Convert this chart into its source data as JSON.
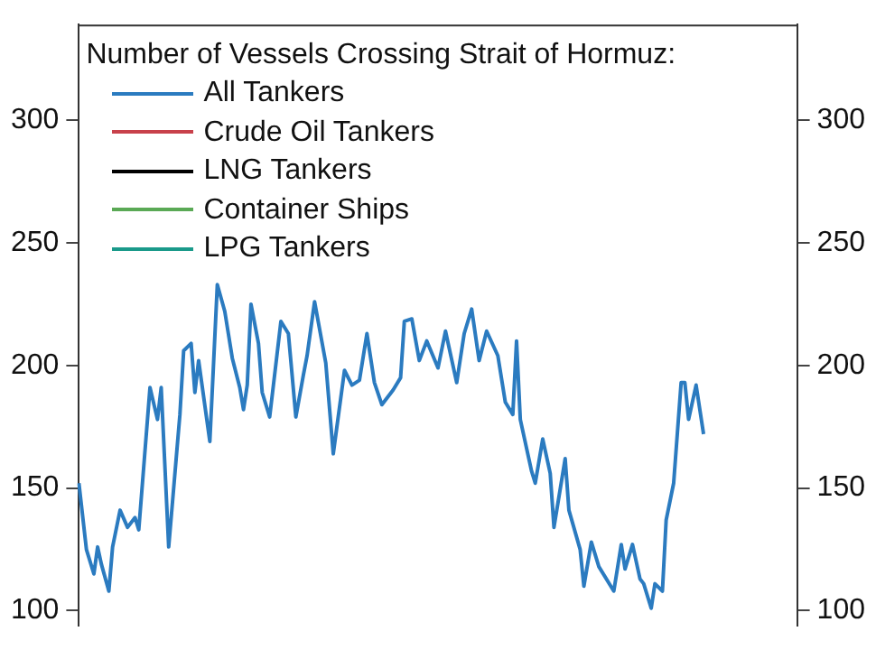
{
  "chart_data": {
    "type": "line",
    "legend_title": "Number of Vessels Crossing Strait of Hormuz:",
    "categories": [
      null,
      null,
      null,
      null,
      null,
      null,
      null,
      null,
      null,
      null,
      null,
      null,
      null,
      null,
      null,
      null,
      null,
      null,
      null,
      null,
      null,
      null,
      null,
      null,
      null,
      null,
      null,
      null,
      null,
      null,
      null,
      null,
      null,
      null,
      null,
      null,
      null,
      null,
      null,
      null,
      null,
      null,
      null,
      null,
      null,
      null,
      null,
      null,
      null,
      null,
      null,
      null,
      null,
      null,
      null,
      null,
      null,
      null,
      null,
      null,
      null,
      null,
      null,
      null,
      null,
      null,
      null,
      null,
      null,
      null,
      null,
      null,
      null,
      null,
      null,
      null,
      null,
      null,
      null,
      null,
      null,
      null,
      null,
      null,
      null,
      null,
      null,
      null,
      null,
      null,
      null,
      null,
      null,
      null,
      null,
      null,
      null,
      null,
      null,
      null,
      null,
      null,
      null,
      null,
      null,
      null,
      null,
      null,
      null,
      null,
      null,
      null,
      null,
      null,
      null,
      null,
      null,
      null,
      null,
      null,
      null,
      null,
      null,
      null,
      null,
      null,
      null,
      null,
      null,
      null,
      null,
      null,
      null,
      null,
      null,
      null,
      null,
      null,
      null,
      null,
      null,
      null,
      null,
      null,
      null,
      null,
      null,
      null,
      null,
      null,
      null,
      null,
      null,
      null,
      null,
      null,
      null,
      null,
      null,
      null,
      null,
      null,
      null,
      null,
      null,
      null,
      null,
      null,
      null,
      null,
      null,
      null,
      null,
      null,
      null,
      null,
      null,
      null,
      null,
      null,
      null,
      null,
      null,
      null,
      null,
      null,
      null,
      null,
      null,
      null,
      null,
      null,
      null
    ],
    "series": [
      {
        "name": "All Tankers",
        "color": "#2b7bc0",
        "values": [
          152,
          null,
          125,
          null,
          115,
          126,
          119,
          null,
          108,
          126,
          null,
          141,
          null,
          134,
          null,
          138,
          133,
          null,
          null,
          191,
          null,
          178,
          191,
          null,
          126,
          null,
          null,
          180,
          206,
          null,
          209,
          189,
          202,
          null,
          null,
          169,
          null,
          233,
          null,
          222,
          null,
          203,
          null,
          191,
          182,
          192,
          225,
          null,
          209,
          189,
          null,
          179,
          null,
          null,
          218,
          null,
          213,
          null,
          179,
          null,
          196,
          204,
          null,
          226,
          null,
          null,
          201,
          null,
          164,
          null,
          null,
          198,
          null,
          192,
          null,
          194,
          null,
          213,
          null,
          193,
          null,
          184,
          null,
          null,
          190,
          null,
          195,
          218,
          null,
          219,
          null,
          202,
          null,
          210,
          null,
          null,
          199,
          null,
          214,
          null,
          null,
          193,
          null,
          213,
          null,
          223,
          null,
          202,
          null,
          214,
          null,
          null,
          204,
          null,
          185,
          null,
          180,
          210,
          178,
          null,
          null,
          157,
          152,
          null,
          170,
          null,
          156,
          134,
          null,
          null,
          162,
          141,
          null,
          null,
          125,
          110,
          null,
          128,
          null,
          118,
          null,
          null,
          null,
          108,
          null,
          127,
          117,
          null,
          127,
          null,
          113,
          111,
          null,
          101,
          111,
          null,
          108,
          137,
          null,
          152,
          null,
          193,
          193,
          178,
          null,
          192,
          null,
          172,
          null,
          null,
          null,
          null,
          null,
          null,
          null,
          null,
          null,
          null,
          null,
          null,
          null,
          null,
          null,
          null,
          null,
          null,
          null,
          null,
          null,
          null,
          null,
          null,
          null
        ]
      },
      {
        "name": "Crude Oil Tankers",
        "color": "#c8414b",
        "values": [
          null,
          null,
          null,
          null,
          null,
          null,
          null,
          null,
          null,
          null,
          null,
          null,
          null,
          null,
          null,
          null,
          null,
          null,
          null,
          null,
          null,
          null,
          null,
          null,
          null,
          null,
          null,
          null,
          null,
          null,
          null,
          null,
          null,
          null,
          null,
          null,
          null,
          null,
          null,
          null,
          null,
          null,
          null,
          null,
          null,
          null,
          null,
          null,
          null,
          null,
          null,
          null,
          null,
          null,
          null,
          null,
          null,
          null,
          null,
          null,
          null,
          null,
          null,
          null,
          null,
          null,
          null,
          null,
          null,
          null,
          null,
          null,
          null,
          null,
          null,
          null,
          null,
          null,
          null,
          null,
          null,
          null,
          null,
          null,
          null,
          null,
          null,
          null,
          null,
          null,
          null,
          null,
          null,
          null,
          null,
          null,
          null,
          null,
          null,
          null,
          null,
          null,
          null,
          null,
          null,
          null,
          null,
          null,
          null,
          null,
          null,
          null,
          null,
          null,
          null,
          null,
          null,
          null,
          null,
          null,
          null,
          null,
          null,
          null,
          null,
          null,
          null,
          null,
          null,
          null,
          null,
          null,
          null,
          null,
          null,
          null,
          null,
          null,
          null,
          null,
          null,
          null,
          null,
          null,
          null,
          null,
          null,
          null,
          null,
          null,
          null,
          null,
          null,
          null,
          null,
          null,
          null,
          null,
          null,
          null,
          null,
          null,
          null,
          null,
          null,
          null,
          null,
          null,
          null,
          null,
          null,
          null,
          null,
          null,
          null,
          null,
          null,
          null,
          null,
          null,
          null,
          null,
          null,
          null,
          null,
          null,
          null,
          null,
          null,
          null,
          null,
          null,
          null
        ]
      },
      {
        "name": "LNG Tankers",
        "color": "#000000",
        "values": [
          null,
          null,
          null,
          null,
          null,
          null,
          null,
          null,
          null,
          null,
          null,
          null,
          null,
          null,
          null,
          null,
          null,
          null,
          null,
          null,
          null,
          null,
          null,
          null,
          null,
          null,
          null,
          null,
          null,
          null,
          null,
          null,
          null,
          null,
          null,
          null,
          null,
          null,
          null,
          null,
          null,
          null,
          null,
          null,
          null,
          null,
          null,
          null,
          null,
          null,
          null,
          null,
          null,
          null,
          null,
          null,
          null,
          null,
          null,
          null,
          null,
          null,
          null,
          null,
          null,
          null,
          null,
          null,
          null,
          null,
          null,
          null,
          null,
          null,
          null,
          null,
          null,
          null,
          null,
          null,
          null,
          null,
          null,
          null,
          null,
          null,
          null,
          null,
          null,
          null,
          null,
          null,
          null,
          null,
          null,
          null,
          null,
          null,
          null,
          null,
          null,
          null,
          null,
          null,
          null,
          null,
          null,
          null,
          null,
          null,
          null,
          null,
          null,
          null,
          null,
          null,
          null,
          null,
          null,
          null,
          null,
          null,
          null,
          null,
          null,
          null,
          null,
          null,
          null,
          null,
          null,
          null,
          null,
          null,
          null,
          null,
          null,
          null,
          null,
          null,
          null,
          null,
          null,
          null,
          null,
          null,
          null,
          null,
          null,
          null,
          null,
          null,
          null,
          null,
          null,
          null,
          null,
          null,
          null,
          null,
          null,
          null,
          null,
          null,
          null,
          null,
          null,
          null,
          null,
          null,
          null,
          null,
          null,
          null,
          null,
          null,
          null,
          null,
          null,
          null,
          null,
          null,
          null,
          null,
          null,
          null,
          null,
          null,
          null,
          null,
          null,
          null,
          null
        ]
      },
      {
        "name": "Container Ships",
        "color": "#5aa955",
        "values": [
          null,
          null,
          null,
          null,
          null,
          null,
          null,
          null,
          null,
          null,
          null,
          null,
          null,
          null,
          null,
          null,
          null,
          null,
          null,
          null,
          null,
          null,
          null,
          null,
          null,
          null,
          null,
          null,
          null,
          null,
          null,
          null,
          null,
          null,
          null,
          null,
          null,
          null,
          null,
          null,
          null,
          null,
          null,
          null,
          null,
          null,
          null,
          null,
          null,
          null,
          null,
          null,
          null,
          null,
          null,
          null,
          null,
          null,
          null,
          null,
          null,
          null,
          null,
          null,
          null,
          null,
          null,
          null,
          null,
          null,
          null,
          null,
          null,
          null,
          null,
          null,
          null,
          null,
          null,
          null,
          null,
          null,
          null,
          null,
          null,
          null,
          null,
          null,
          null,
          null,
          null,
          null,
          null,
          null,
          null,
          null,
          null,
          null,
          null,
          null,
          null,
          null,
          null,
          null,
          null,
          null,
          null,
          null,
          null,
          null,
          null,
          null,
          null,
          null,
          null,
          null,
          null,
          null,
          null,
          null,
          null,
          null,
          null,
          null,
          null,
          null,
          null,
          null,
          null,
          null,
          null,
          null,
          null,
          null,
          null,
          null,
          null,
          null,
          null,
          null,
          null,
          null,
          null,
          null,
          null,
          null,
          null,
          null,
          null,
          null,
          null,
          null,
          null,
          null,
          null,
          null,
          null,
          null,
          null,
          null,
          null,
          null,
          null,
          null,
          null,
          null,
          null,
          null,
          null,
          null,
          null,
          null,
          null,
          null,
          null,
          null,
          null,
          null,
          null,
          null,
          null,
          null,
          null,
          null,
          null,
          null,
          null,
          null,
          null,
          null,
          null,
          null,
          null
        ]
      },
      {
        "name": "LPG Tankers",
        "color": "#1a9a8a",
        "values": [
          null,
          null,
          null,
          null,
          null,
          null,
          null,
          null,
          null,
          null,
          null,
          null,
          null,
          null,
          null,
          null,
          null,
          null,
          null,
          null,
          null,
          null,
          null,
          null,
          null,
          null,
          null,
          null,
          null,
          null,
          null,
          null,
          null,
          null,
          null,
          null,
          null,
          null,
          null,
          null,
          null,
          null,
          null,
          null,
          null,
          null,
          null,
          null,
          null,
          null,
          null,
          null,
          null,
          null,
          null,
          null,
          null,
          null,
          null,
          null,
          null,
          null,
          null,
          null,
          null,
          null,
          null,
          null,
          null,
          null,
          null,
          null,
          null,
          null,
          null,
          null,
          null,
          null,
          null,
          null,
          null,
          null,
          null,
          null,
          null,
          null,
          null,
          null,
          null,
          null,
          null,
          null,
          null,
          null,
          null,
          null,
          null,
          null,
          null,
          null,
          null,
          null,
          null,
          null,
          null,
          null,
          null,
          null,
          null,
          null,
          null,
          null,
          null,
          null,
          null,
          null,
          null,
          null,
          null,
          null,
          null,
          null,
          null,
          null,
          null,
          null,
          null,
          null,
          null,
          null,
          null,
          null,
          null,
          null,
          null,
          null,
          null,
          null,
          null,
          null,
          null,
          null,
          null,
          null,
          null,
          null,
          null,
          null,
          null,
          null,
          null,
          null,
          null,
          null,
          null,
          null,
          null,
          null,
          null,
          null,
          null,
          null,
          null,
          null,
          null,
          null,
          null,
          null,
          null,
          null,
          null,
          null,
          null,
          null,
          null,
          null,
          null,
          null,
          null,
          null,
          null,
          null,
          null,
          null,
          null,
          null,
          null,
          null,
          null,
          null,
          null,
          null,
          null
        ]
      }
    ],
    "ylim": [
      94,
      339
    ],
    "yticks": [
      100,
      150,
      200,
      250,
      300
    ],
    "y2lim": [
      94,
      339
    ],
    "y2ticks": [
      100,
      150,
      200,
      250,
      300
    ],
    "tick_labels": "y",
    "grid": false,
    "legend": "top left",
    "line_style": "solid",
    "marker": "none"
  }
}
